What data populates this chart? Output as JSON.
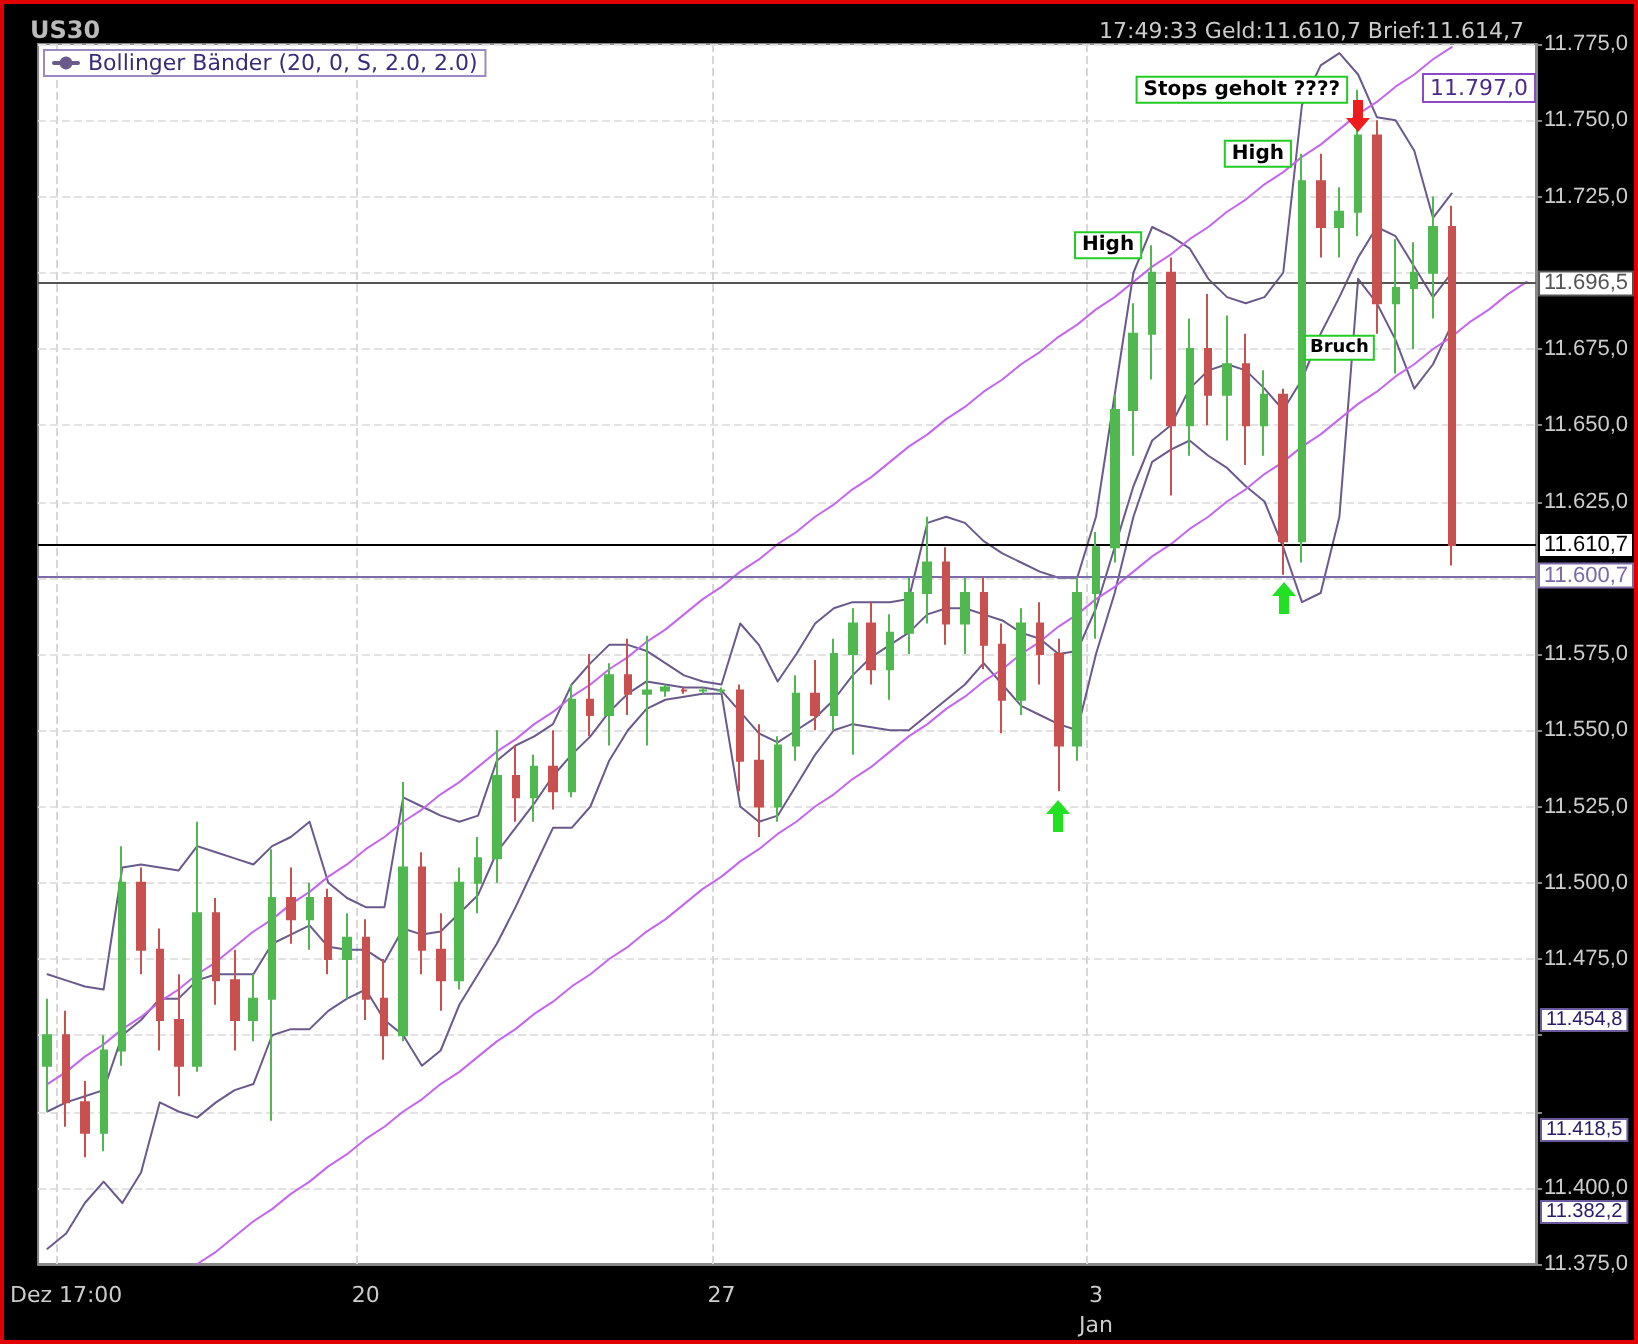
{
  "chart_data": {
    "type": "candlestick",
    "title": "US30",
    "subtitle": "17:49:33 Geld:11.610,7 Brief:11.614,7",
    "categories": [
      null,
      "Dez 17:00",
      null,
      null,
      null,
      null,
      null,
      null,
      null,
      null,
      null,
      null,
      null,
      null,
      null,
      null,
      null,
      "20",
      null,
      null,
      null,
      null,
      null,
      null,
      null,
      null,
      null,
      null,
      null,
      null,
      null,
      null,
      null,
      null,
      null,
      null,
      "27",
      null,
      null,
      null,
      null,
      null,
      null,
      null,
      null,
      null,
      null,
      null,
      null,
      null,
      null,
      null,
      null,
      null,
      null,
      null,
      "3\nJan",
      null,
      null,
      null,
      null,
      null,
      null,
      null,
      null,
      null,
      null,
      null,
      null,
      null,
      null,
      null,
      null,
      null,
      null,
      null,
      null,
      null,
      null,
      null
    ],
    "colors": [
      "#4fb84f",
      "#c8504f"
    ],
    "series": [
      {
        "type": "line",
        "name": "Bollinger Bänder (20, 0, S, 2.0, 2.0)",
        "color": "#6a5a8c",
        "values": [
          11470,
          11468,
          11466,
          11465,
          11505,
          11506,
          11505,
          11504,
          11512,
          11510,
          11508,
          11506,
          11512,
          11515,
          11520,
          11500,
          11495,
          11492,
          11492,
          11528,
          11525,
          11522,
          11520,
          11522,
          11540,
          11545,
          11548,
          11552,
          11565,
          11572,
          11578,
          11578,
          11576,
          11572,
          11568,
          11566,
          11565,
          11585,
          11578,
          11566,
          11575,
          11585,
          11590,
          11592,
          11592,
          11592,
          11593,
          11618,
          11620,
          11618,
          11612,
          11608,
          11605,
          11602,
          11600,
          11600,
          11620,
          11660,
          11700,
          11715,
          11712,
          11708,
          11698,
          11692,
          11690,
          11692,
          11700,
          11755,
          11768,
          11772,
          11765,
          11751,
          11750,
          11740,
          11718,
          11726,
          null,
          null,
          null,
          null
        ]
      },
      {
        "type": "line",
        "color": "#6a5a8c",
        "values": [
          11425,
          11428,
          11430,
          11432,
          11450,
          11455,
          11462,
          11462,
          11468,
          11470,
          11470,
          11470,
          11480,
          11483,
          11486,
          11479,
          11478,
          11478,
          11474,
          11485,
          11483,
          11484,
          11490,
          11496,
          11510,
          11518,
          11526,
          11535,
          11542,
          11548,
          11556,
          11562,
          11566,
          11565,
          11564,
          11564,
          11563,
          11556,
          11549,
          11546,
          11550,
          11554,
          11560,
          11568,
          11574,
          11578,
          11582,
          11588,
          11590,
          11590,
          11588,
          11586,
          11582,
          11580,
          11575,
          11576,
          11590,
          11610,
          11630,
          11645,
          11650,
          11662,
          11668,
          11670,
          11668,
          11662,
          11655,
          11665,
          11680,
          11692,
          11705,
          11715,
          11712,
          11702,
          11692,
          11700,
          null,
          null,
          null,
          null
        ]
      },
      {
        "type": "line",
        "color": "#6a5a8c",
        "values": [
          11380,
          11385,
          11395,
          11402,
          11395,
          11405,
          11428,
          11425,
          11423,
          11428,
          11432,
          11434,
          11450,
          11452,
          11452,
          11458,
          11462,
          11465,
          11455,
          11450,
          11440,
          11445,
          11460,
          11470,
          11480,
          11492,
          11505,
          11518,
          11518,
          11525,
          11540,
          11550,
          11557,
          11560,
          11561,
          11562,
          11562,
          11525,
          11520,
          11522,
          11532,
          11542,
          11550,
          11552,
          11551,
          11550,
          11550,
          11555,
          11560,
          11565,
          11572,
          11565,
          11558,
          11555,
          11552,
          11550,
          11575,
          11595,
          11620,
          11638,
          11642,
          11645,
          11640,
          11636,
          11630,
          11625,
          11610,
          11592,
          11595,
          11620,
          11698,
          11690,
          11678,
          11662,
          11670,
          11683,
          null,
          null,
          null,
          null
        ]
      },
      {
        "type": "line",
        "color": "#c466ee",
        "values": [
          11434,
          11438,
          11443,
          11447,
          11452,
          11456,
          11461,
          11465,
          11470,
          11474,
          11479,
          11484,
          11488,
          11493,
          11497,
          11502,
          11506,
          11511,
          11515,
          11520,
          11524,
          11529,
          11533,
          11538,
          11543,
          11547,
          11552,
          11556,
          11561,
          11565,
          11570,
          11574,
          11579,
          11583,
          11588,
          11593,
          11597,
          11602,
          11606,
          11611,
          11615,
          11620,
          11624,
          11629,
          11633,
          11638,
          11643,
          11647,
          11652,
          11656,
          11661,
          11665,
          11670,
          11674,
          11679,
          11683,
          11688,
          11692,
          11697,
          11702,
          11706,
          11711,
          11715,
          11720,
          11724,
          11729,
          11733,
          11738,
          11742,
          11747,
          11752,
          11756,
          11761,
          11765,
          11770,
          11774,
          null,
          null,
          null,
          null
        ]
      },
      {
        "type": "line",
        "color": "#c466ee",
        "values": [
          null,
          null,
          null,
          null,
          null,
          null,
          null,
          null,
          11375,
          11379,
          11384,
          11389,
          11393,
          11398,
          11402,
          11407,
          11411,
          11416,
          11420,
          11425,
          11429,
          11434,
          11438,
          11443,
          11448,
          11452,
          11457,
          11461,
          11466,
          11470,
          11475,
          11479,
          11484,
          11488,
          11493,
          11498,
          11502,
          11507,
          11511,
          11516,
          11520,
          11525,
          11529,
          11534,
          11538,
          11543,
          11548,
          11552,
          11557,
          11561,
          11566,
          11570,
          11575,
          11579,
          11584,
          11588,
          11593,
          11597,
          11602,
          11607,
          11611,
          11616,
          11620,
          11625,
          11629,
          11634,
          11638,
          11643,
          11647,
          11652,
          11657,
          11661,
          11666,
          11670,
          11675,
          11679,
          11684,
          11688,
          11693,
          11697
        ]
      },
      {
        "ohlc": [
          [
            11440,
            11462,
            11425,
            11450
          ],
          [
            11450,
            11458,
            11420,
            11428
          ],
          [
            11428,
            11435,
            11410,
            11418
          ],
          [
            11418,
            11450,
            11412,
            11445
          ],
          [
            11445,
            11512,
            11440,
            11500
          ],
          [
            11500,
            11505,
            11470,
            11478
          ],
          [
            11478,
            11485,
            11445,
            11455
          ],
          [
            11455,
            11470,
            11430,
            11440
          ],
          [
            11440,
            11520,
            11438,
            11490
          ],
          [
            11490,
            11495,
            11460,
            11468
          ],
          [
            11468,
            11478,
            11445,
            11455
          ],
          [
            11455,
            11470,
            11448,
            11462
          ],
          [
            11462,
            11511,
            11422,
            11495
          ],
          [
            11495,
            11505,
            11480,
            11488
          ],
          [
            11488,
            11500,
            11478,
            11495
          ],
          [
            11495,
            11498,
            11470,
            11475
          ],
          [
            11475,
            11490,
            11462,
            11482
          ],
          [
            11482,
            11488,
            11455,
            11462
          ],
          [
            11462,
            11475,
            11442,
            11450
          ],
          [
            11450,
            11533,
            11448,
            11505
          ],
          [
            11505,
            11510,
            11470,
            11478
          ],
          [
            11478,
            11490,
            11458,
            11468
          ],
          [
            11468,
            11505,
            11465,
            11500
          ],
          [
            11500,
            11515,
            11490,
            11508
          ],
          [
            11508,
            11550,
            11500,
            11535
          ],
          [
            11535,
            11545,
            11520,
            11528
          ],
          [
            11528,
            11542,
            11520,
            11538
          ],
          [
            11538,
            11550,
            11524,
            11530
          ],
          [
            11530,
            11565,
            11528,
            11560
          ],
          [
            11560,
            11575,
            11548,
            11555
          ],
          [
            11555,
            11572,
            11545,
            11568
          ],
          [
            11568,
            11580,
            11555,
            11562
          ],
          [
            11562,
            11581,
            11545,
            11563
          ],
          [
            11563,
            11565,
            11561,
            11564
          ],
          [
            11563,
            11564,
            11562,
            11563
          ],
          [
            11563,
            11564,
            11562,
            11563
          ],
          [
            11563,
            11564,
            11562,
            11563
          ],
          [
            11563,
            11565,
            11530,
            11540
          ],
          [
            11540,
            11552,
            11515,
            11525
          ],
          [
            11525,
            11548,
            11520,
            11545
          ],
          [
            11545,
            11568,
            11540,
            11562
          ],
          [
            11562,
            11573,
            11550,
            11555
          ],
          [
            11555,
            11580,
            11550,
            11575
          ],
          [
            11575,
            11590,
            11542,
            11585
          ],
          [
            11585,
            11592,
            11565,
            11570
          ],
          [
            11570,
            11588,
            11560,
            11582
          ],
          [
            11582,
            11600,
            11575,
            11595
          ],
          [
            11595,
            11620,
            11585,
            11605
          ],
          [
            11605,
            11610,
            11578,
            11585
          ],
          [
            11585,
            11600,
            11575,
            11595
          ],
          [
            11595,
            11600,
            11570,
            11578
          ],
          [
            11578,
            11585,
            11549,
            11560
          ],
          [
            11560,
            11590,
            11555,
            11585
          ],
          [
            11585,
            11592,
            11565,
            11575
          ],
          [
            11575,
            11580,
            11530,
            11545
          ],
          [
            11545,
            11600,
            11540,
            11595
          ],
          [
            11595,
            11615,
            11580,
            11610
          ],
          [
            11610,
            11660,
            11605,
            11655
          ],
          [
            11655,
            11690,
            11640,
            11680
          ],
          [
            11680,
            11709,
            11665,
            11700
          ],
          [
            11700,
            11705,
            11627,
            11650
          ],
          [
            11650,
            11685,
            11640,
            11675
          ],
          [
            11675,
            11693,
            11650,
            11660
          ],
          [
            11660,
            11686,
            11645,
            11670
          ],
          [
            11670,
            11680,
            11637,
            11650
          ],
          [
            11650,
            11668,
            11640,
            11660
          ],
          [
            11660,
            11662,
            11601,
            11612
          ],
          [
            11612,
            11739,
            11605,
            11730
          ],
          [
            11730,
            11739,
            11705,
            11715
          ],
          [
            11715,
            11728,
            11705,
            11720
          ],
          [
            11720,
            11760,
            11712,
            11745
          ],
          [
            11745,
            11750,
            11680,
            11690
          ],
          [
            11690,
            11711,
            11667,
            11695
          ],
          [
            11695,
            11710,
            11675,
            11700
          ],
          [
            11700,
            11725,
            11685,
            11715
          ],
          [
            11715,
            11722,
            11604,
            11610.7
          ],
          null,
          null,
          null,
          null
        ]
      }
    ],
    "ylim": [
      11375,
      11775
    ],
    "yticks": [
      {
        "value": 11375,
        "label": "11.375,0"
      },
      {
        "value": 11400,
        "label": "11.400,0"
      },
      {
        "value": 11425,
        "label": null
      },
      {
        "value": 11450,
        "label": null
      },
      {
        "value": 11475,
        "label": "11.475,0"
      },
      {
        "value": 11500,
        "label": "11.500,0"
      },
      {
        "value": 11525,
        "label": "11.525,0"
      },
      {
        "value": 11550,
        "label": "11.550,0"
      },
      {
        "value": 11575,
        "label": "11.575,0"
      },
      {
        "value": 11600,
        "label": null
      },
      {
        "value": 11625,
        "label": "11.625,0"
      },
      {
        "value": 11650,
        "label": "11.650,0"
      },
      {
        "value": 11675,
        "label": "11.675,0"
      },
      {
        "value": 11700,
        "label": null
      },
      {
        "value": 11725,
        "label": "11.725,0"
      },
      {
        "value": 11750,
        "label": "11.750,0"
      },
      {
        "value": 11775,
        "label": "11.775,0"
      }
    ],
    "ref_lines": [
      {
        "axis": "y",
        "value": 11696.5,
        "label": "11.696,5",
        "color": "#555555"
      },
      {
        "axis": "y",
        "value": 11610.7,
        "label": "11.610,7",
        "color": "#000000"
      },
      {
        "axis": "y",
        "value": 11600.7,
        "label": "11.600,7",
        "color": "#7a6aa8"
      }
    ],
    "annotations": [
      "High",
      "High",
      "Stops geholt ????",
      "Bruch",
      "11.797,0",
      "11.454,8",
      "11.418,5",
      "11.382,2"
    ],
    "grid": true,
    "legend": "top left"
  }
}
